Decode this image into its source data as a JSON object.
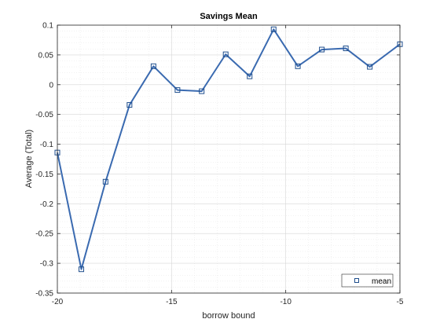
{
  "chart_data": {
    "type": "line",
    "title": "Savings Mean",
    "xlabel": "borrow bound",
    "ylabel": "Average (Total)",
    "xlim": [
      -20,
      -5
    ],
    "ylim": [
      -0.35,
      0.1
    ],
    "x_ticks": [
      -20,
      -15,
      -10,
      -5
    ],
    "x_tick_labels": [
      "-20",
      "-15",
      "-10",
      "-5"
    ],
    "y_ticks": [
      0.1,
      0.05,
      0,
      -0.05,
      -0.1,
      -0.15,
      -0.2,
      -0.25,
      -0.3,
      -0.35
    ],
    "y_tick_labels": [
      "0.1",
      "0.05",
      "0",
      "-0.05",
      "-0.1",
      "-0.15",
      "-0.2",
      "-0.25",
      "-0.3",
      "-0.35"
    ],
    "grid": true,
    "minor_grid": true,
    "legend_position": "bottom-right",
    "series": [
      {
        "name": "mean",
        "color": "#3a6ab0",
        "marker": "square",
        "x": [
          -20,
          -18.95,
          -17.89,
          -16.84,
          -15.79,
          -14.74,
          -13.68,
          -12.63,
          -11.58,
          -10.53,
          -9.47,
          -8.42,
          -7.37,
          -6.32,
          -5
        ],
        "y": [
          -0.114,
          -0.31,
          -0.163,
          -0.034,
          0.031,
          -0.009,
          -0.011,
          0.051,
          0.014,
          0.093,
          0.031,
          0.059,
          0.061,
          0.03,
          0.068
        ]
      }
    ]
  }
}
